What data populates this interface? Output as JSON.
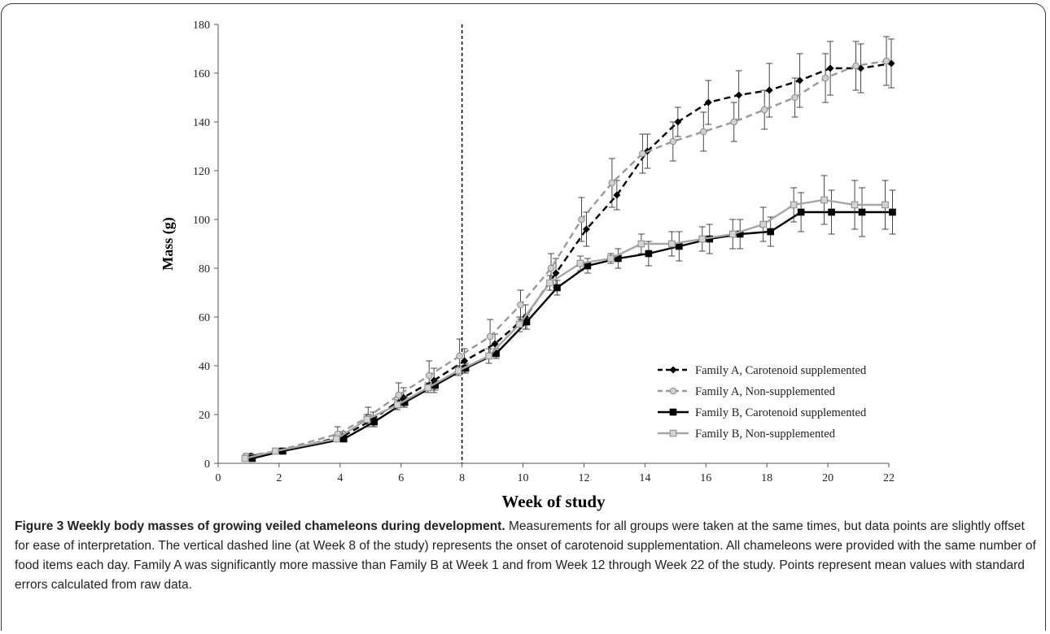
{
  "caption": {
    "title": "Figure 3 Weekly body masses of growing veiled chameleons during development.",
    "text": " Measurements for all groups were taken at the same times, but data points are slightly offset for ease of interpretation. The vertical dashed line (at Week 8 of the study) represents the onset of carotenoid supplementation. All chameleons were provided with the same number of food items each day. Family A was significantly more massive than Family B at Week 1 and from Week 12 through Week 22 of the study. Points represent mean values with standard errors calculated from raw data."
  },
  "chart_data": {
    "type": "line",
    "xlabel": "Week of study",
    "ylabel": "Mass (g)",
    "xlim": [
      0,
      22
    ],
    "ylim": [
      0,
      180
    ],
    "xticks": [
      0,
      2,
      4,
      6,
      8,
      10,
      12,
      14,
      16,
      18,
      20,
      22
    ],
    "yticks": [
      0,
      20,
      40,
      60,
      80,
      100,
      120,
      140,
      160,
      180
    ],
    "grid": false,
    "legend_position": "bottom-right",
    "vertical_line": {
      "x": 8,
      "style": "dashed",
      "color": "#000000"
    },
    "series": [
      {
        "name": "Family A, Carotenoid supplemented",
        "color": "#000000",
        "dash": "dashed",
        "marker": "diamond",
        "x": [
          1,
          2,
          4,
          5,
          6,
          7,
          8,
          9,
          10,
          11,
          12,
          13,
          14,
          15,
          16,
          17,
          18,
          19,
          20,
          21,
          22
        ],
        "y": [
          3,
          5,
          11,
          18,
          27,
          34,
          42,
          49,
          60,
          78,
          96,
          110,
          128,
          140,
          148,
          151,
          153,
          157,
          162,
          162,
          164
        ],
        "err": [
          1,
          1,
          2,
          3,
          4,
          5,
          5,
          4,
          5,
          6,
          7,
          6,
          7,
          6,
          9,
          10,
          11,
          11,
          11,
          10,
          10
        ]
      },
      {
        "name": "Family A, Non-supplemented",
        "color": "#9a9a9a",
        "dash": "dashed",
        "marker": "circle",
        "x": [
          1,
          2,
          4,
          5,
          6,
          7,
          8,
          9,
          10,
          11,
          12,
          13,
          14,
          15,
          16,
          17,
          18,
          19,
          20,
          21,
          22
        ],
        "y": [
          3,
          5,
          12,
          19,
          28,
          36,
          44,
          52,
          65,
          80,
          100,
          115,
          127,
          132,
          136,
          140,
          145,
          150,
          158,
          163,
          165
        ],
        "err": [
          1,
          1,
          3,
          4,
          5,
          6,
          7,
          7,
          6,
          6,
          9,
          10,
          8,
          8,
          8,
          8,
          8,
          8,
          10,
          10,
          10
        ]
      },
      {
        "name": "Family B, Carotenoid supplemented",
        "color": "#000000",
        "dash": "solid",
        "marker": "square",
        "x": [
          1,
          2,
          4,
          5,
          6,
          7,
          8,
          9,
          10,
          11,
          12,
          13,
          14,
          15,
          16,
          17,
          18,
          19,
          20,
          21,
          22
        ],
        "y": [
          2,
          5,
          10,
          17,
          25,
          32,
          39,
          45,
          58,
          72,
          81,
          84,
          86,
          89,
          92,
          94,
          95,
          103,
          103,
          103,
          103
        ],
        "err": [
          1,
          1,
          1,
          2,
          2,
          2,
          2,
          2,
          3,
          3,
          3,
          4,
          5,
          6,
          6,
          6,
          6,
          8,
          9,
          10,
          9
        ]
      },
      {
        "name": "Family B, Non-supplemented",
        "color": "#a6a6a6",
        "dash": "solid",
        "marker": "square",
        "x": [
          1,
          2,
          4,
          5,
          6,
          7,
          8,
          9,
          10,
          11,
          12,
          13,
          14,
          15,
          16,
          17,
          18,
          19,
          20,
          21,
          22
        ],
        "y": [
          2,
          5,
          10,
          18,
          24,
          31,
          38,
          44,
          57,
          74,
          82,
          84,
          90,
          90,
          92,
          94,
          98,
          106,
          108,
          106,
          106
        ],
        "err": [
          1,
          1,
          1,
          2,
          2,
          2,
          2,
          3,
          3,
          3,
          3,
          2,
          4,
          5,
          5,
          6,
          7,
          7,
          10,
          10,
          10
        ]
      }
    ]
  }
}
